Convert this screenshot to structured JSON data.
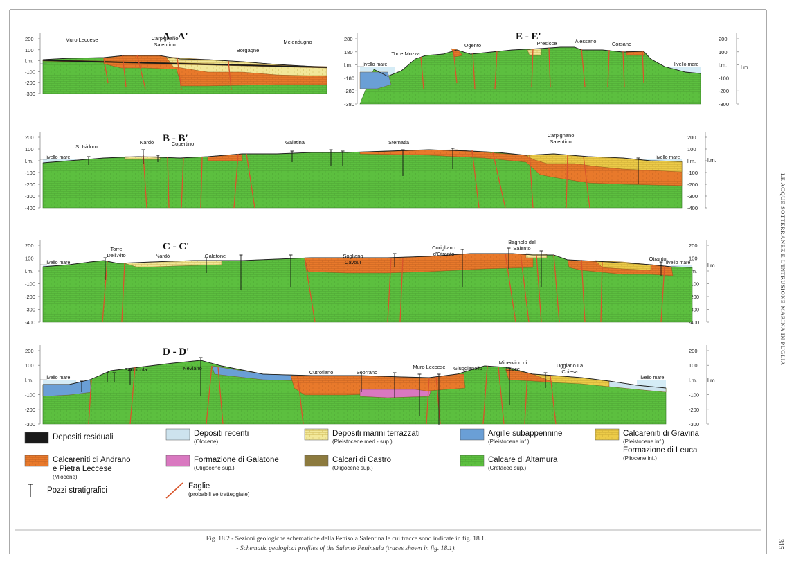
{
  "figure": {
    "caption_it": "Fig. 18.2 - Sezioni geologiche schematiche della Penisola Salentina le cui tracce sono indicate in fig. 18.1.",
    "caption_en": "- Schematic geological profiles of the Salento Peninsula (traces shown in fig. 18.1).",
    "running_title": "LE ACQUE SOTTERRANEE E L'INTRUSIONE MARINA IN PUGLIA",
    "page_number": "315"
  },
  "colors": {
    "altamura": "#5cbf3f",
    "andrano": "#e8792b",
    "terrazzati": "#f2e89a",
    "gravina": "#eccb48",
    "argille": "#6a9fd6",
    "recenti": "#cde3ee",
    "galatone": "#d978c0",
    "castro": "#8c7a3e",
    "residuali": "#1a1a1a",
    "faults": "#d8552b",
    "sea": "#d5ecf6"
  },
  "sections": [
    {
      "id": "A-A'",
      "label": "A - A'",
      "left_ticks": [
        "200",
        "100",
        "l.m.",
        "-100",
        "-200",
        "-300"
      ],
      "right_ticks": [],
      "localities": [
        "Muro Leccese",
        "Carpignano Salentino",
        "Borgagne",
        "Melendugno"
      ]
    },
    {
      "id": "E-E'",
      "label": "E - E'",
      "left_ticks": [
        "280",
        "180",
        "l.m.",
        "-180",
        "-280",
        "-380"
      ],
      "right_ticks": [
        "200",
        "100",
        "l.m.",
        "-100",
        "-200",
        "-300"
      ],
      "right_label": "l.m.",
      "sea_left": "livello mare",
      "sea_right": "livello mare",
      "localities": [
        "Torre Mozza",
        "Ugento",
        "Presicce",
        "Alessano",
        "Corsano"
      ]
    },
    {
      "id": "B-B'",
      "label": "B - B'",
      "left_ticks": [
        "200",
        "100",
        "l.m.",
        "-100",
        "-200",
        "-300",
        "-400"
      ],
      "right_ticks": [
        "200",
        "100",
        "l.m.",
        "-100",
        "-200",
        "-300",
        "-400"
      ],
      "right_label": "l.m.",
      "sea_left": "livello mare",
      "sea_right": "livello mare",
      "localities": [
        "S. Isidoro",
        "Nardò",
        "Copertino",
        "Galatina",
        "Sternatia",
        "Carpignano Salentino"
      ]
    },
    {
      "id": "C-C'",
      "label": "C - C'",
      "left_ticks": [
        "200",
        "100",
        "l.m.",
        "-100",
        "-200",
        "-300",
        "-400"
      ],
      "right_ticks": [
        "200",
        "100",
        "l.m.",
        "-100",
        "-200",
        "-300",
        "-400"
      ],
      "right_label": "l.m.",
      "sea_left": "livello mare",
      "sea_right": "livello mare",
      "localities": [
        "Torre Dell'Alto",
        "Nardò",
        "Galatone",
        "Sogliano Cavour",
        "Corigliano d'Otranto",
        "Bagnolo del Salento",
        "Otranto"
      ]
    },
    {
      "id": "D-D'",
      "label": "D - D'",
      "left_ticks": [
        "200",
        "100",
        "l.m.",
        "-100",
        "-200",
        "-300"
      ],
      "right_ticks": [
        "200",
        "100",
        "l.m.",
        "-100",
        "-200",
        "-300"
      ],
      "right_label": "l.m.",
      "sea_left": "livello mare",
      "sea_right": "livello mare",
      "localities": [
        "Sannicola",
        "Neviano",
        "Cutrofiano",
        "Scorrano",
        "Muro Leccese",
        "Giuggianello",
        "Minervino di Lecce",
        "Uggiano La Chiesa"
      ]
    }
  ],
  "legend": [
    {
      "key": "residuali",
      "label": "Depositi residuali",
      "sub": ""
    },
    {
      "key": "recenti",
      "label": "Depositi recenti",
      "sub": "(Olocene)"
    },
    {
      "key": "terrazzati",
      "label": "Depositi marini terrazzati",
      "sub": "(Pleistocene med.- sup.)"
    },
    {
      "key": "argille",
      "label": "Argille subappennine",
      "sub": "(Pleistocene inf.)"
    },
    {
      "key": "gravina",
      "label": "Calcareniti di Gravina",
      "sub": "(Pleistocene inf.)",
      "label2": "Formazione di Leuca",
      "sub2": "(Pliocene inf.)"
    },
    {
      "key": "andrano",
      "label": "Calcareniti di Andrano",
      "label_line2": "e Pietra Leccese",
      "sub": "(Miocene)"
    },
    {
      "key": "galatone",
      "label": "Formazione di Galatone",
      "sub": "(Oligocene sup.)"
    },
    {
      "key": "castro",
      "label": "Calcari di Castro",
      "sub": "(Oligocene sup.)"
    },
    {
      "key": "altamura",
      "label": "Calcare di Altamura",
      "sub": "(Cretaceo sup.)"
    },
    {
      "key": "wells",
      "label": "Pozzi stratigrafici",
      "sub": ""
    },
    {
      "key": "faults",
      "label": "Faglie",
      "sub": "(probabili se tratteggiate)"
    }
  ]
}
